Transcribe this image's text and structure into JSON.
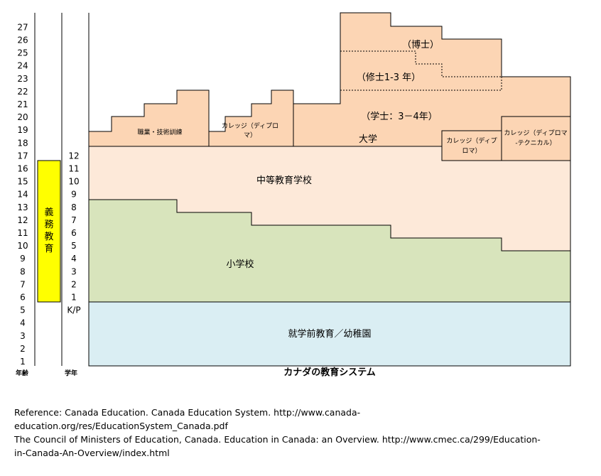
{
  "title": "カナダの教育システム",
  "axis_labels": {
    "age": "年齢",
    "grade": "学年"
  },
  "ages": [
    "1",
    "2",
    "3",
    "4",
    "5",
    "6",
    "7",
    "8",
    "9",
    "10",
    "11",
    "12",
    "13",
    "14",
    "15",
    "16",
    "17",
    "18",
    "19",
    "20",
    "21",
    "22",
    "23",
    "24",
    "25",
    "26",
    "27"
  ],
  "grades": [
    "K/P",
    "1",
    "2",
    "3",
    "4",
    "5",
    "6",
    "7",
    "8",
    "9",
    "10",
    "11",
    "12"
  ],
  "compulsory_label": "義務教育",
  "colors": {
    "preschool": "#daeef3",
    "elementary": "#d8e4bc",
    "secondary": "#fde9d9",
    "post_secondary": "#fcd5b4",
    "compulsory": "#ffff00",
    "border": "#000000"
  },
  "stages": {
    "preschool": "就学前教育／幼稚園",
    "elementary": "小学校",
    "secondary": "中等教育学校",
    "vocational": "職業・技術訓練",
    "college_diploma_1": "カレッジ（ディプロマ）",
    "university": "大学",
    "bachelor": "（学士：3－4年）",
    "master": "（修士1-3 年）",
    "doctor": "（博士）",
    "college_diploma_2": "カレッジ（ディプロマ）",
    "college_technical": "カレッジ（ディプロマ-テクニカル）"
  },
  "reference_lines": [
    "Reference: Canada Education. Canada Education System. http://www.canada-",
    "education.org/res/EducationSystem_Canada.pdf",
    "The Council of Ministers of Education, Canada. Education in Canada: an Overview. http://www.cmec.ca/299/Education-",
    "in-Canada-An-Overview/index.html"
  ]
}
